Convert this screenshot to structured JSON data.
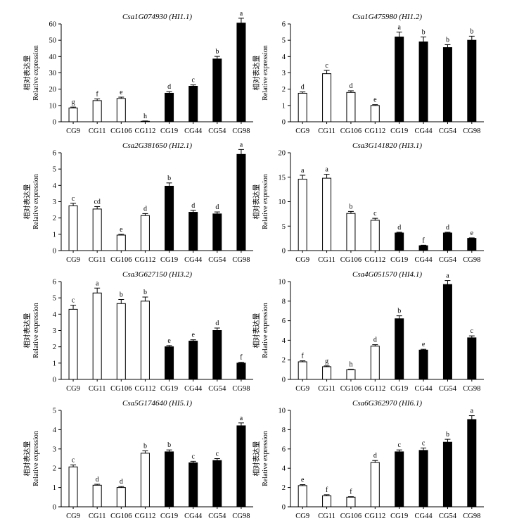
{
  "figure": {
    "ylabel_cn": "相对表达量",
    "ylabel_en": "Relative expression",
    "colors": {
      "open": "#ffffff",
      "filled": "#000000",
      "axis": "#000000"
    }
  },
  "chart_data": [
    {
      "type": "bar",
      "title_gene": "Csa1G074930",
      "title_locus": "HI1.1",
      "categories": [
        "CG9",
        "CG11",
        "CG106",
        "CG112",
        "CG19",
        "CG44",
        "CG54",
        "CG98"
      ],
      "values": [
        8.5,
        13,
        14.3,
        0.3,
        17.5,
        21.8,
        38.5,
        60.5
      ],
      "errors": [
        0.5,
        1,
        0.8,
        0.2,
        1,
        0.8,
        1.6,
        3
      ],
      "letters": [
        "g",
        "f",
        "e",
        "h",
        "d",
        "c",
        "b",
        "a"
      ],
      "fill": [
        "white",
        "white",
        "white",
        "white",
        "black",
        "black",
        "black",
        "black"
      ],
      "ylim": [
        0,
        60
      ],
      "yticks": [
        0,
        10,
        20,
        30,
        40,
        50,
        60
      ]
    },
    {
      "type": "bar",
      "title_gene": "Csa1G475980",
      "title_locus": "HI1.2",
      "categories": [
        "CG9",
        "CG11",
        "CG106",
        "CG112",
        "CG19",
        "CG44",
        "CG54",
        "CG98"
      ],
      "values": [
        1.75,
        2.95,
        1.8,
        1.0,
        5.2,
        4.9,
        4.55,
        5.0
      ],
      "errors": [
        0.08,
        0.2,
        0.1,
        0.05,
        0.3,
        0.3,
        0.18,
        0.25
      ],
      "letters": [
        "d",
        "c",
        "d",
        "e",
        "a",
        "b",
        "b",
        "b"
      ],
      "fill": [
        "white",
        "white",
        "white",
        "white",
        "black",
        "black",
        "black",
        "black"
      ],
      "ylim": [
        0,
        6
      ],
      "yticks": [
        0,
        1,
        2,
        3,
        4,
        5,
        6
      ]
    },
    {
      "type": "bar",
      "title_gene": "Csa2G381650",
      "title_locus": "HI2.1",
      "categories": [
        "CG9",
        "CG11",
        "CG106",
        "CG112",
        "CG19",
        "CG44",
        "CG54",
        "CG98"
      ],
      "values": [
        2.75,
        2.55,
        0.95,
        2.15,
        3.95,
        2.35,
        2.25,
        5.9
      ],
      "errors": [
        0.15,
        0.15,
        0.05,
        0.12,
        0.2,
        0.12,
        0.12,
        0.3
      ],
      "letters": [
        "c",
        "cd",
        "e",
        "d",
        "b",
        "d",
        "d",
        "a"
      ],
      "fill": [
        "white",
        "white",
        "white",
        "white",
        "black",
        "black",
        "black",
        "black"
      ],
      "ylim": [
        0,
        6
      ],
      "yticks": [
        0,
        1,
        2,
        3,
        4,
        5,
        6
      ]
    },
    {
      "type": "bar",
      "title_gene": "Csa3G141820",
      "title_locus": "HI3.1",
      "categories": [
        "CG9",
        "CG11",
        "CG106",
        "CG112",
        "CG19",
        "CG44",
        "CG54",
        "CG98"
      ],
      "values": [
        14.6,
        14.8,
        7.6,
        6.2,
        3.6,
        1.0,
        3.6,
        2.5
      ],
      "errors": [
        0.8,
        0.8,
        0.4,
        0.4,
        0.15,
        0.1,
        0.15,
        0.1
      ],
      "letters": [
        "a",
        "a",
        "b",
        "c",
        "d",
        "f",
        "d",
        "e"
      ],
      "fill": [
        "white",
        "white",
        "white",
        "white",
        "black",
        "black",
        "black",
        "black"
      ],
      "ylim": [
        0,
        20
      ],
      "yticks": [
        0,
        5,
        10,
        15,
        20
      ]
    },
    {
      "type": "bar",
      "title_gene": "Csa3G627150",
      "title_locus": "HI3.2",
      "categories": [
        "CG9",
        "CG11",
        "CG106",
        "CG112",
        "CG19",
        "CG44",
        "CG54",
        "CG98"
      ],
      "values": [
        4.3,
        5.3,
        4.65,
        4.8,
        2.0,
        2.35,
        3.0,
        1.0
      ],
      "errors": [
        0.25,
        0.3,
        0.25,
        0.25,
        0.08,
        0.08,
        0.15,
        0.05
      ],
      "letters": [
        "c",
        "a",
        "b",
        "b",
        "e",
        "e",
        "d",
        "f"
      ],
      "fill": [
        "white",
        "white",
        "white",
        "white",
        "black",
        "black",
        "black",
        "black"
      ],
      "ylim": [
        0,
        6
      ],
      "yticks": [
        0,
        1,
        2,
        3,
        4,
        5,
        6
      ]
    },
    {
      "type": "bar",
      "title_gene": "Csa4G051570",
      "title_locus": "HI4.1",
      "categories": [
        "CG9",
        "CG11",
        "CG106",
        "CG112",
        "CG19",
        "CG44",
        "CG54",
        "CG98"
      ],
      "values": [
        1.8,
        1.3,
        1.0,
        3.4,
        6.2,
        3.0,
        9.7,
        4.25
      ],
      "errors": [
        0.1,
        0.08,
        0.05,
        0.15,
        0.3,
        0.08,
        0.4,
        0.2
      ],
      "letters": [
        "f",
        "g",
        "h",
        "d",
        "b",
        "e",
        "a",
        "c"
      ],
      "fill": [
        "white",
        "white",
        "white",
        "white",
        "black",
        "black",
        "black",
        "black"
      ],
      "ylim": [
        0,
        10
      ],
      "yticks": [
        0,
        2,
        4,
        6,
        8,
        10
      ]
    },
    {
      "type": "bar",
      "title_gene": "Csa5G174640",
      "title_locus": "HI5.1",
      "categories": [
        "CG9",
        "CG11",
        "CG106",
        "CG112",
        "CG19",
        "CG44",
        "CG54",
        "CG98"
      ],
      "values": [
        2.07,
        1.12,
        1.0,
        2.78,
        2.85,
        2.28,
        2.4,
        4.2
      ],
      "errors": [
        0.1,
        0.05,
        0.05,
        0.12,
        0.1,
        0.08,
        0.1,
        0.15
      ],
      "letters": [
        "c",
        "d",
        "d",
        "b",
        "b",
        "c",
        "c",
        "a"
      ],
      "fill": [
        "white",
        "white",
        "white",
        "white",
        "black",
        "black",
        "black",
        "black"
      ],
      "ylim": [
        0,
        5
      ],
      "yticks": [
        0,
        1,
        2,
        3,
        4,
        5
      ]
    },
    {
      "type": "bar",
      "title_gene": "Csa6G362970",
      "title_locus": "HI6.1",
      "categories": [
        "CG9",
        "CG11",
        "CG106",
        "CG112",
        "CG19",
        "CG44",
        "CG54",
        "CG98"
      ],
      "values": [
        2.2,
        1.15,
        1.0,
        4.6,
        5.7,
        5.85,
        6.7,
        9.05
      ],
      "errors": [
        0.1,
        0.1,
        0.05,
        0.2,
        0.2,
        0.25,
        0.3,
        0.4
      ],
      "letters": [
        "e",
        "f",
        "f",
        "d",
        "c",
        "c",
        "b",
        "a"
      ],
      "fill": [
        "white",
        "white",
        "white",
        "white",
        "black",
        "black",
        "black",
        "black"
      ],
      "ylim": [
        0,
        10
      ],
      "yticks": [
        0,
        2,
        4,
        6,
        8,
        10
      ]
    }
  ]
}
